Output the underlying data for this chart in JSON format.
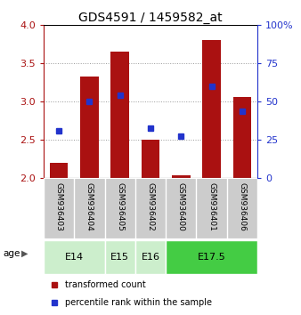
{
  "title": "GDS4591 / 1459582_at",
  "samples": [
    "GSM936403",
    "GSM936404",
    "GSM936405",
    "GSM936402",
    "GSM936400",
    "GSM936401",
    "GSM936406"
  ],
  "bar_bottoms": [
    2.0,
    2.0,
    2.0,
    2.0,
    2.0,
    2.0,
    2.0
  ],
  "bar_tops": [
    2.19,
    3.33,
    3.65,
    2.5,
    2.03,
    3.8,
    3.06
  ],
  "percentile_values": [
    2.62,
    3.0,
    3.08,
    2.65,
    2.55,
    3.2,
    2.87
  ],
  "ylim": [
    2.0,
    4.0
  ],
  "y2lim": [
    0,
    100
  ],
  "yticks": [
    2.0,
    2.5,
    3.0,
    3.5,
    4.0
  ],
  "y2ticks": [
    0,
    25,
    50,
    75,
    100
  ],
  "y2ticklabels": [
    "0",
    "25",
    "50",
    "75",
    "100%"
  ],
  "bar_color": "#AA1111",
  "dot_color": "#2233CC",
  "age_groups": [
    {
      "label": "E14",
      "samples": [
        0,
        1
      ],
      "color": "#cceecc"
    },
    {
      "label": "E15",
      "samples": [
        2
      ],
      "color": "#cceecc"
    },
    {
      "label": "E16",
      "samples": [
        3
      ],
      "color": "#cceecc"
    },
    {
      "label": "E17.5",
      "samples": [
        4,
        5,
        6
      ],
      "color": "#44cc44"
    }
  ],
  "legend_bar_label": "transformed count",
  "legend_dot_label": "percentile rank within the sample",
  "bar_width": 0.6,
  "grid_color": "#999999",
  "bg_color": "#ffffff",
  "sample_bg_color": "#cccccc",
  "title_fontsize": 10,
  "tick_fontsize": 8,
  "sample_fontsize": 6.5,
  "age_fontsize": 8,
  "legend_fontsize": 7
}
